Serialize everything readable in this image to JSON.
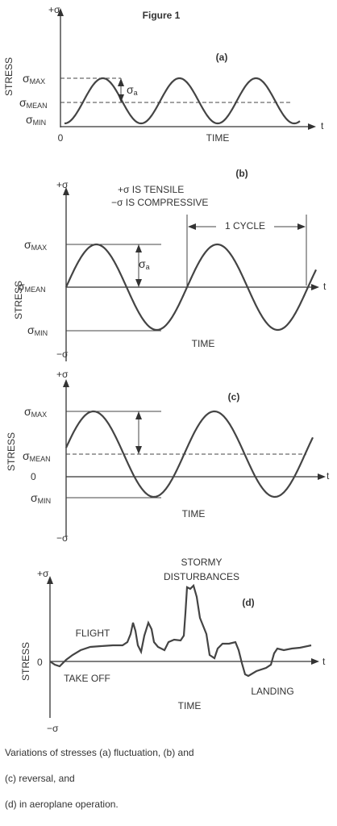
{
  "figure_label": "Figure 1",
  "panels": [
    {
      "label": "(a)",
      "pos_axis": "+σ",
      "axis_title": "STRESS",
      "max": {
        "sym": "σ",
        "sub": "MAX"
      },
      "mean": {
        "sym": "σ",
        "sub": "MEAN"
      },
      "min": {
        "sym": "σ",
        "sub": "MIN"
      },
      "amplitude": {
        "sym": "σ",
        "sub": "a"
      },
      "origin": "0",
      "x_axis_title": "TIME",
      "x_axis_end": "t"
    },
    {
      "label": "(b)",
      "pos_axis": "+σ",
      "note_tensile": "+σ IS TENSILE",
      "note_compressive": "−σ IS COMPRESSIVE",
      "cycle": "1 CYCLE",
      "axis_title": "STRESS",
      "max": {
        "sym": "σ",
        "sub": "MAX"
      },
      "amplitude": {
        "sym": "σ",
        "sub": "a"
      },
      "mean": {
        "sym": "σ",
        "sub": "MEAN"
      },
      "min": {
        "sym": "σ",
        "sub": "MIN"
      },
      "neg_axis": "−σ",
      "x_axis_title": "TIME",
      "x_axis_end": "t"
    },
    {
      "label": "(c)",
      "pos_axis": "+σ",
      "axis_title": "STRESS",
      "max": {
        "sym": "σ",
        "sub": "MAX"
      },
      "mean": {
        "sym": "σ",
        "sub": "MEAN"
      },
      "zero": "0",
      "min": {
        "sym": "σ",
        "sub": "MIN"
      },
      "neg_axis": "−σ",
      "x_axis_title": "TIME",
      "x_axis_end": "t"
    },
    {
      "label": "(d)",
      "pos_axis": "+σ",
      "stormy": [
        "STORMY",
        "DISTURBANCES"
      ],
      "flight": "FLIGHT",
      "axis_title": "STRESS",
      "zero": "0",
      "take_off": "TAKE OFF",
      "landing": "LANDING",
      "x_axis_title": "TIME",
      "x_axis_end": "t",
      "neg_axis": "−σ"
    }
  ],
  "caption": [
    "Variations of stresses (a) fluctuation, (b) and",
    "(c) reversal, and",
    "(d) in aeroplane operation."
  ]
}
